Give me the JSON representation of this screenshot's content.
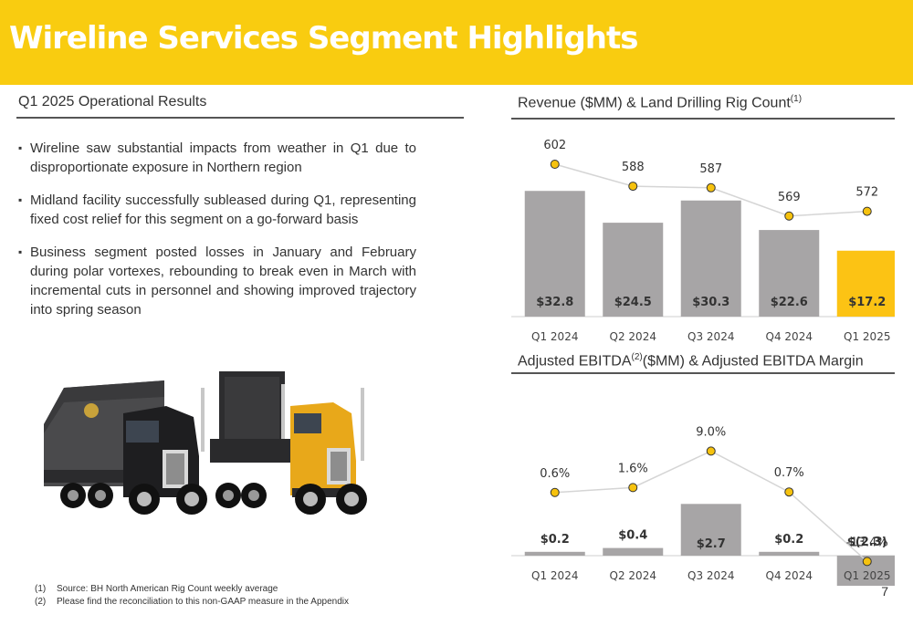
{
  "header": {
    "title": "Wireline Services Segment Highlights"
  },
  "left": {
    "section_title": "Q1 2025 Operational Results",
    "bullets": [
      "Wireline saw substantial impacts from weather in Q1 due to disproportionate exposure in Northern region",
      "Midland facility successfully subleased during Q1, representing fixed cost relief for this segment on a go-forward basis",
      "Business segment posted losses in January and February during polar vortexes, rebounding to break even in March with incremental cuts in personnel and showing improved trajectory into spring season"
    ]
  },
  "revenue_title": {
    "text": "Revenue ($MM) & Land Drilling Rig Count",
    "sup": "(1)"
  },
  "ebitda_title": {
    "pre": "Adjusted EBITDA",
    "sup": "(2)",
    "post": "($MM) & Adjusted EBITDA Margin"
  },
  "chart_data": [
    {
      "type": "bar",
      "categories": [
        "Q1 2024",
        "Q2 2024",
        "Q3 2024",
        "Q4 2024",
        "Q1 2025"
      ],
      "series": [
        {
          "values": [
            32.8,
            24.5,
            30.3,
            22.6,
            17.2
          ],
          "labels": [
            "$32.8",
            "$24.5",
            "$30.3",
            "$22.6",
            "$17.2"
          ]
        },
        {
          "type": "line",
          "values": [
            602,
            588,
            587,
            569,
            572
          ],
          "labels": [
            "602",
            "588",
            "587",
            "569",
            "572"
          ]
        }
      ],
      "highlight_index": 4,
      "colors": {
        "bar": "#A7A5A6",
        "highlight": "#FCC314",
        "marker": "#F6C20E",
        "marker_stroke": "#333333",
        "line": "#D5D5D5"
      }
    },
    {
      "type": "bar",
      "categories": [
        "Q1 2024",
        "Q2 2024",
        "Q3 2024",
        "Q4 2024",
        "Q1 2025"
      ],
      "series": [
        {
          "values": [
            0.2,
            0.4,
            2.7,
            0.2,
            -2.3
          ],
          "labels": [
            "$0.2",
            "$0.4",
            "$2.7",
            "$0.2",
            "$(2.3)"
          ]
        },
        {
          "type": "line",
          "values": [
            0.6,
            1.6,
            9.0,
            0.7,
            -13.4
          ],
          "labels": [
            "0.6%",
            "1.6%",
            "9.0%",
            "0.7%",
            "-13.4%"
          ]
        }
      ],
      "colors": {
        "bar": "#A7A5A6",
        "marker": "#F6C20E",
        "marker_stroke": "#333333",
        "line": "#D5D5D5"
      }
    }
  ],
  "footnotes": [
    {
      "num": "(1)",
      "text": "Source: BH North American Rig Count weekly average"
    },
    {
      "num": "(2)",
      "text": "Please find the reconciliation to this non-GAAP measure in the Appendix"
    }
  ],
  "page_number": "7"
}
